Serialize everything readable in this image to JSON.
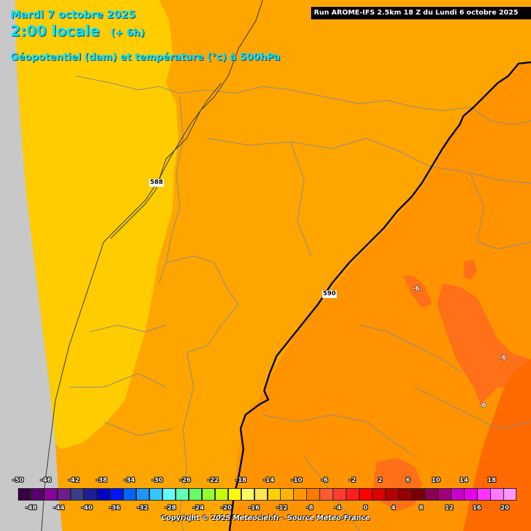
{
  "header": {
    "date": "Mardi 7 octobre 2025",
    "time": "2:00 locale",
    "lead": "(+ 6h)",
    "parameter": "Géopotentiel (dam) et température (°c) à 500hPa"
  },
  "run_info": "Run AROME-IFS 2.5km 18 Z du Lundi 6 octobre 2025",
  "geopotential_labels": [
    "588",
    "590"
  ],
  "temperature_labels": [
    "-6",
    "-6",
    "-6"
  ],
  "legend": {
    "top_ticks": [
      "-50",
      "-46",
      "-42",
      "-38",
      "-34",
      "-30",
      "-26",
      "-22",
      "-18",
      "-14",
      "-10",
      "-6",
      "-2",
      "2",
      "6",
      "10",
      "14",
      "18"
    ],
    "bottom_ticks": [
      "-48",
      "-44",
      "-40",
      "-36",
      "-32",
      "-28",
      "-24",
      "-20",
      "-16",
      "-12",
      "-8",
      "-4",
      "0",
      "4",
      "8",
      "12",
      "16",
      "20"
    ],
    "colors": [
      "#3a0046",
      "#5a006e",
      "#8c00a0",
      "#6e1e8c",
      "#3c3c8c",
      "#1e1e96",
      "#0000c8",
      "#0014ff",
      "#0064ff",
      "#1e96ff",
      "#32c8ff",
      "#64ffff",
      "#64ffb4",
      "#64ff64",
      "#96ff32",
      "#c8ff00",
      "#ffff00",
      "#ffff64",
      "#ffe650",
      "#ffd200",
      "#ffb400",
      "#ff9600",
      "#ff7800",
      "#ff5a32",
      "#ff3c32",
      "#ff1e1e",
      "#ff0000",
      "#dc0000",
      "#b40000",
      "#960000",
      "#780000",
      "#8c0050",
      "#a00078",
      "#c800c8",
      "#e600e6",
      "#ff32ff",
      "#ff78ff",
      "#ff96ff"
    ]
  },
  "colors": {
    "sea": "#c8c8c8",
    "band_586_588": "#ffcc00",
    "band_588_590": "#ffa500",
    "band_590_592": "#ff9400",
    "warm_pocket": "#ff7018",
    "warm_edge": "#ff6a00"
  },
  "copyright": "Copyright © 2025 Meteociel.fr - Source Meteo-France"
}
